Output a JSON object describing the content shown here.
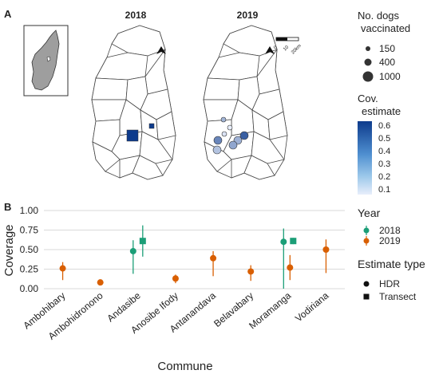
{
  "panel_a": {
    "label": "A",
    "years": [
      "2018",
      "2019"
    ],
    "scale_bar": {
      "ticks": [
        "0",
        "10",
        "20km"
      ]
    },
    "size_legend": {
      "title_line1": "No. dogs",
      "title_line2": "vaccinated",
      "entries": [
        "150",
        "400",
        "1000"
      ]
    },
    "color_legend": {
      "title_line1": "Cov.",
      "title_line2": "estimate",
      "ticks": [
        "0.6",
        "0.5",
        "0.4",
        "0.3",
        "0.2",
        "0.1"
      ],
      "color_high": "#0d3b8c",
      "color_low": "#e8eefb"
    },
    "map_points_2018": [
      {
        "shape": "square",
        "coverage": 0.61,
        "dogs": 1000
      },
      {
        "shape": "square",
        "coverage": 0.61,
        "dogs": 150
      }
    ],
    "map_points_2019": [
      {
        "shape": "circle",
        "coverage": 0.26,
        "dogs": 150
      },
      {
        "shape": "circle",
        "coverage": 0.08,
        "dogs": 150
      },
      {
        "shape": "circle",
        "coverage": 0.39,
        "dogs": 400
      },
      {
        "shape": "circle",
        "coverage": 0.27,
        "dogs": 400
      },
      {
        "shape": "circle",
        "coverage": 0.13,
        "dogs": 150
      },
      {
        "shape": "circle",
        "coverage": 0.22,
        "dogs": 400
      },
      {
        "shape": "circle",
        "coverage": 0.5,
        "dogs": 400
      },
      {
        "shape": "circle",
        "coverage": 0.3,
        "dogs": 400
      }
    ]
  },
  "panel_b": {
    "label": "B",
    "legend_year": {
      "title": "Year",
      "entries": [
        "2018",
        "2019"
      ]
    },
    "legend_type": {
      "title": "Estimate type",
      "entries": [
        "HDR",
        "Transect"
      ]
    }
  },
  "colors": {
    "y2018": "#1b9e77",
    "y2019": "#d95f02"
  },
  "chart_data": {
    "type": "scatter",
    "xlabel": "Commune",
    "ylabel": "Coverage",
    "ylim": [
      0,
      1
    ],
    "yticks": [
      "0.00",
      "0.25",
      "0.50",
      "0.75",
      "1.00"
    ],
    "categories": [
      "Ambohibary",
      "Ambohidronono",
      "Andasibe",
      "Anosibe Ifody",
      "Antanandava",
      "Belavabary",
      "Moramanga",
      "Vodiriana"
    ],
    "series": [
      {
        "name": "2018",
        "estimate_type": "HDR",
        "color": "#1b9e77",
        "points": [
          {
            "category": "Andasibe",
            "y": 0.48,
            "low": 0.19,
            "high": 0.62
          },
          {
            "category": "Moramanga",
            "y": 0.6,
            "low": 0.0,
            "high": 0.77
          }
        ]
      },
      {
        "name": "2018",
        "estimate_type": "Transect",
        "color": "#1b9e77",
        "points": [
          {
            "category": "Andasibe",
            "y": 0.61,
            "low": 0.41,
            "high": 0.81
          },
          {
            "category": "Moramanga",
            "y": 0.61,
            "low": 0.57,
            "high": 0.65
          }
        ]
      },
      {
        "name": "2019",
        "estimate_type": "HDR",
        "color": "#d95f02",
        "points": [
          {
            "category": "Ambohibary",
            "y": 0.26,
            "low": 0.11,
            "high": 0.34
          },
          {
            "category": "Ambohidronono",
            "y": 0.08,
            "low": 0.08,
            "high": 0.08
          },
          {
            "category": "Anosibe Ifody",
            "y": 0.13,
            "low": 0.07,
            "high": 0.18
          },
          {
            "category": "Antanandava",
            "y": 0.39,
            "low": 0.16,
            "high": 0.48
          },
          {
            "category": "Belavabary",
            "y": 0.22,
            "low": 0.1,
            "high": 0.3
          },
          {
            "category": "Moramanga",
            "y": 0.27,
            "low": 0.11,
            "high": 0.43
          },
          {
            "category": "Vodiriana",
            "y": 0.5,
            "low": 0.2,
            "high": 0.63
          }
        ]
      }
    ]
  }
}
